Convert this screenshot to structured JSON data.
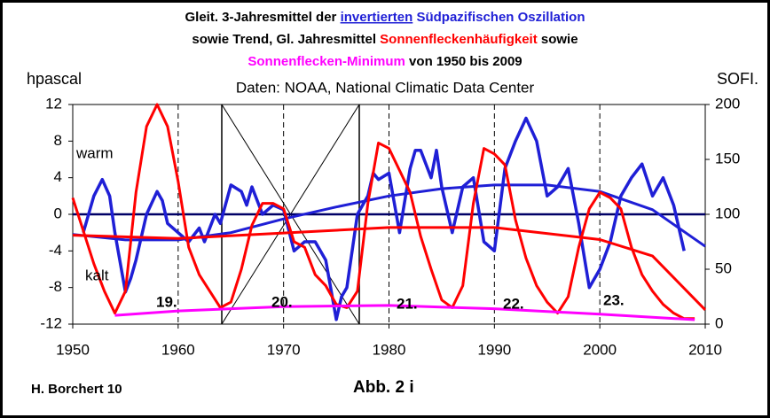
{
  "chart_data": {
    "type": "line",
    "title": [
      [
        {
          "text": "Gleit. 3-Jahresmittel der ",
          "color": "#000000"
        },
        {
          "text": "invertierten",
          "color": "#1f1fd6",
          "underline": true
        },
        {
          "text": " Südpazifischen Oszillation",
          "color": "#1f1fd6"
        }
      ],
      [
        {
          "text": "sowie Trend, Gl. Jahresmittel ",
          "color": "#000000"
        },
        {
          "text": "Sonnenfleckenhäufigkeit",
          "color": "#ff0000"
        },
        {
          "text": " sowie",
          "color": "#000000"
        }
      ],
      [
        {
          "text": "Sonnenflecken-Minimum",
          "color": "#ff00ff"
        },
        {
          "text": " von 1950 bis 2009",
          "color": "#000000"
        }
      ]
    ],
    "subtitle": "Daten: NOAA, National Climatic Data Center",
    "y_label": "hpascal",
    "y2_label": "SOFI.",
    "annotations": [
      "warm",
      "kalt",
      "19.",
      "20.",
      "21.",
      "22.",
      "23.",
      "H. Borchert 10",
      "Abb. 2 i"
    ],
    "xlim": [
      1950,
      2010
    ],
    "xticks": [
      1950,
      1960,
      1970,
      1980,
      1990,
      2000,
      2010
    ],
    "ylim": [
      -12,
      12
    ],
    "yticks": [
      -12,
      -8,
      -4,
      0,
      4,
      8,
      12
    ],
    "y2lim": [
      0,
      200
    ],
    "y2ticks": [
      0,
      50,
      100,
      150,
      200
    ],
    "grid": true,
    "series": [
      {
        "color": "#1f1fd6",
        "axis": "y",
        "x": [
          1951,
          1952,
          1952.8,
          1953.5,
          1954,
          1955,
          1955.5,
          1956,
          1957,
          1958,
          1958.5,
          1959,
          1960,
          1961,
          1962,
          1962.5,
          1963.5,
          1964,
          1965,
          1966,
          1966.5,
          1967,
          1968,
          1969,
          1970,
          1971,
          1972,
          1973,
          1974,
          1975,
          1975.5,
          1976,
          1977,
          1978,
          1978.5,
          1979,
          1980,
          1981,
          1982,
          1982.5,
          1983,
          1984,
          1984.5,
          1985,
          1986,
          1987,
          1988,
          1989,
          1990,
          1991,
          1992,
          1993,
          1994,
          1995,
          1996,
          1997,
          1998,
          1999,
          2000,
          2001,
          2002,
          2003,
          2004,
          2005,
          2006,
          2007,
          2008
        ],
        "values": [
          -2,
          2,
          3.8,
          2,
          -2,
          -8.5,
          -7,
          -5,
          0,
          2.5,
          1.5,
          -1,
          -2,
          -3,
          -1.5,
          -3,
          0,
          -1,
          3.2,
          2.5,
          1,
          3,
          0,
          1,
          0.5,
          -4,
          -3,
          -3,
          -5,
          -11.5,
          -9,
          -8,
          0,
          2,
          4.5,
          3.8,
          4.5,
          -2,
          5,
          7,
          7,
          4,
          7,
          3,
          -2,
          3,
          4,
          -3,
          -4,
          5,
          8,
          10.5,
          8,
          2,
          3,
          5,
          -1,
          -8,
          -6,
          -3,
          2,
          4,
          5.5,
          2,
          4,
          1,
          -4
        ]
      },
      {
        "color": "#1f1fd6",
        "axis": "y",
        "x": [
          1950,
          1955,
          1960,
          1965,
          1970,
          1975,
          1980,
          1985,
          1990,
          1995,
          2000,
          2005,
          2010
        ],
        "values": [
          -2.2,
          -2.8,
          -2.8,
          -2,
          -0.5,
          0.8,
          2,
          2.8,
          3.2,
          3.2,
          2.5,
          0.5,
          -3.5
        ]
      },
      {
        "color": "#ff0000",
        "axis": "y2",
        "x": [
          1950,
          1951,
          1952,
          1953,
          1954,
          1955,
          1956,
          1957,
          1958,
          1959,
          1960,
          1961,
          1962,
          1963,
          1964,
          1965,
          1966,
          1967,
          1968,
          1969,
          1970,
          1971,
          1972,
          1973,
          1974,
          1975,
          1976,
          1977,
          1978,
          1979,
          1980,
          1981,
          1982,
          1983,
          1984,
          1985,
          1986,
          1987,
          1988,
          1989,
          1990,
          1991,
          1992,
          1993,
          1994,
          1995,
          1996,
          1997,
          1998,
          1999,
          2000,
          2001,
          2002,
          2003,
          2004,
          2005,
          2006,
          2007,
          2008,
          2009
        ],
        "values": [
          115,
          85,
          55,
          30,
          10,
          30,
          120,
          180,
          200,
          180,
          130,
          70,
          45,
          30,
          15,
          20,
          50,
          90,
          110,
          110,
          105,
          75,
          70,
          45,
          35,
          18,
          15,
          30,
          110,
          165,
          160,
          140,
          120,
          80,
          50,
          22,
          15,
          35,
          110,
          160,
          155,
          145,
          95,
          60,
          35,
          20,
          10,
          25,
          70,
          105,
          120,
          115,
          105,
          70,
          45,
          30,
          18,
          10,
          5,
          5
        ]
      },
      {
        "color": "#ff0000",
        "axis": "y2",
        "x": [
          1950,
          1960,
          1970,
          1980,
          1990,
          2000,
          2005,
          2010
        ],
        "values": [
          81,
          78,
          83,
          88,
          88,
          77,
          62,
          13
        ]
      },
      {
        "color": "#ff00ff",
        "axis": "y2",
        "x": [
          1954,
          1960,
          1970,
          1980,
          1990,
          2000,
          2009
        ],
        "values": [
          8,
          12,
          16,
          17,
          14,
          9,
          4
        ]
      }
    ]
  }
}
